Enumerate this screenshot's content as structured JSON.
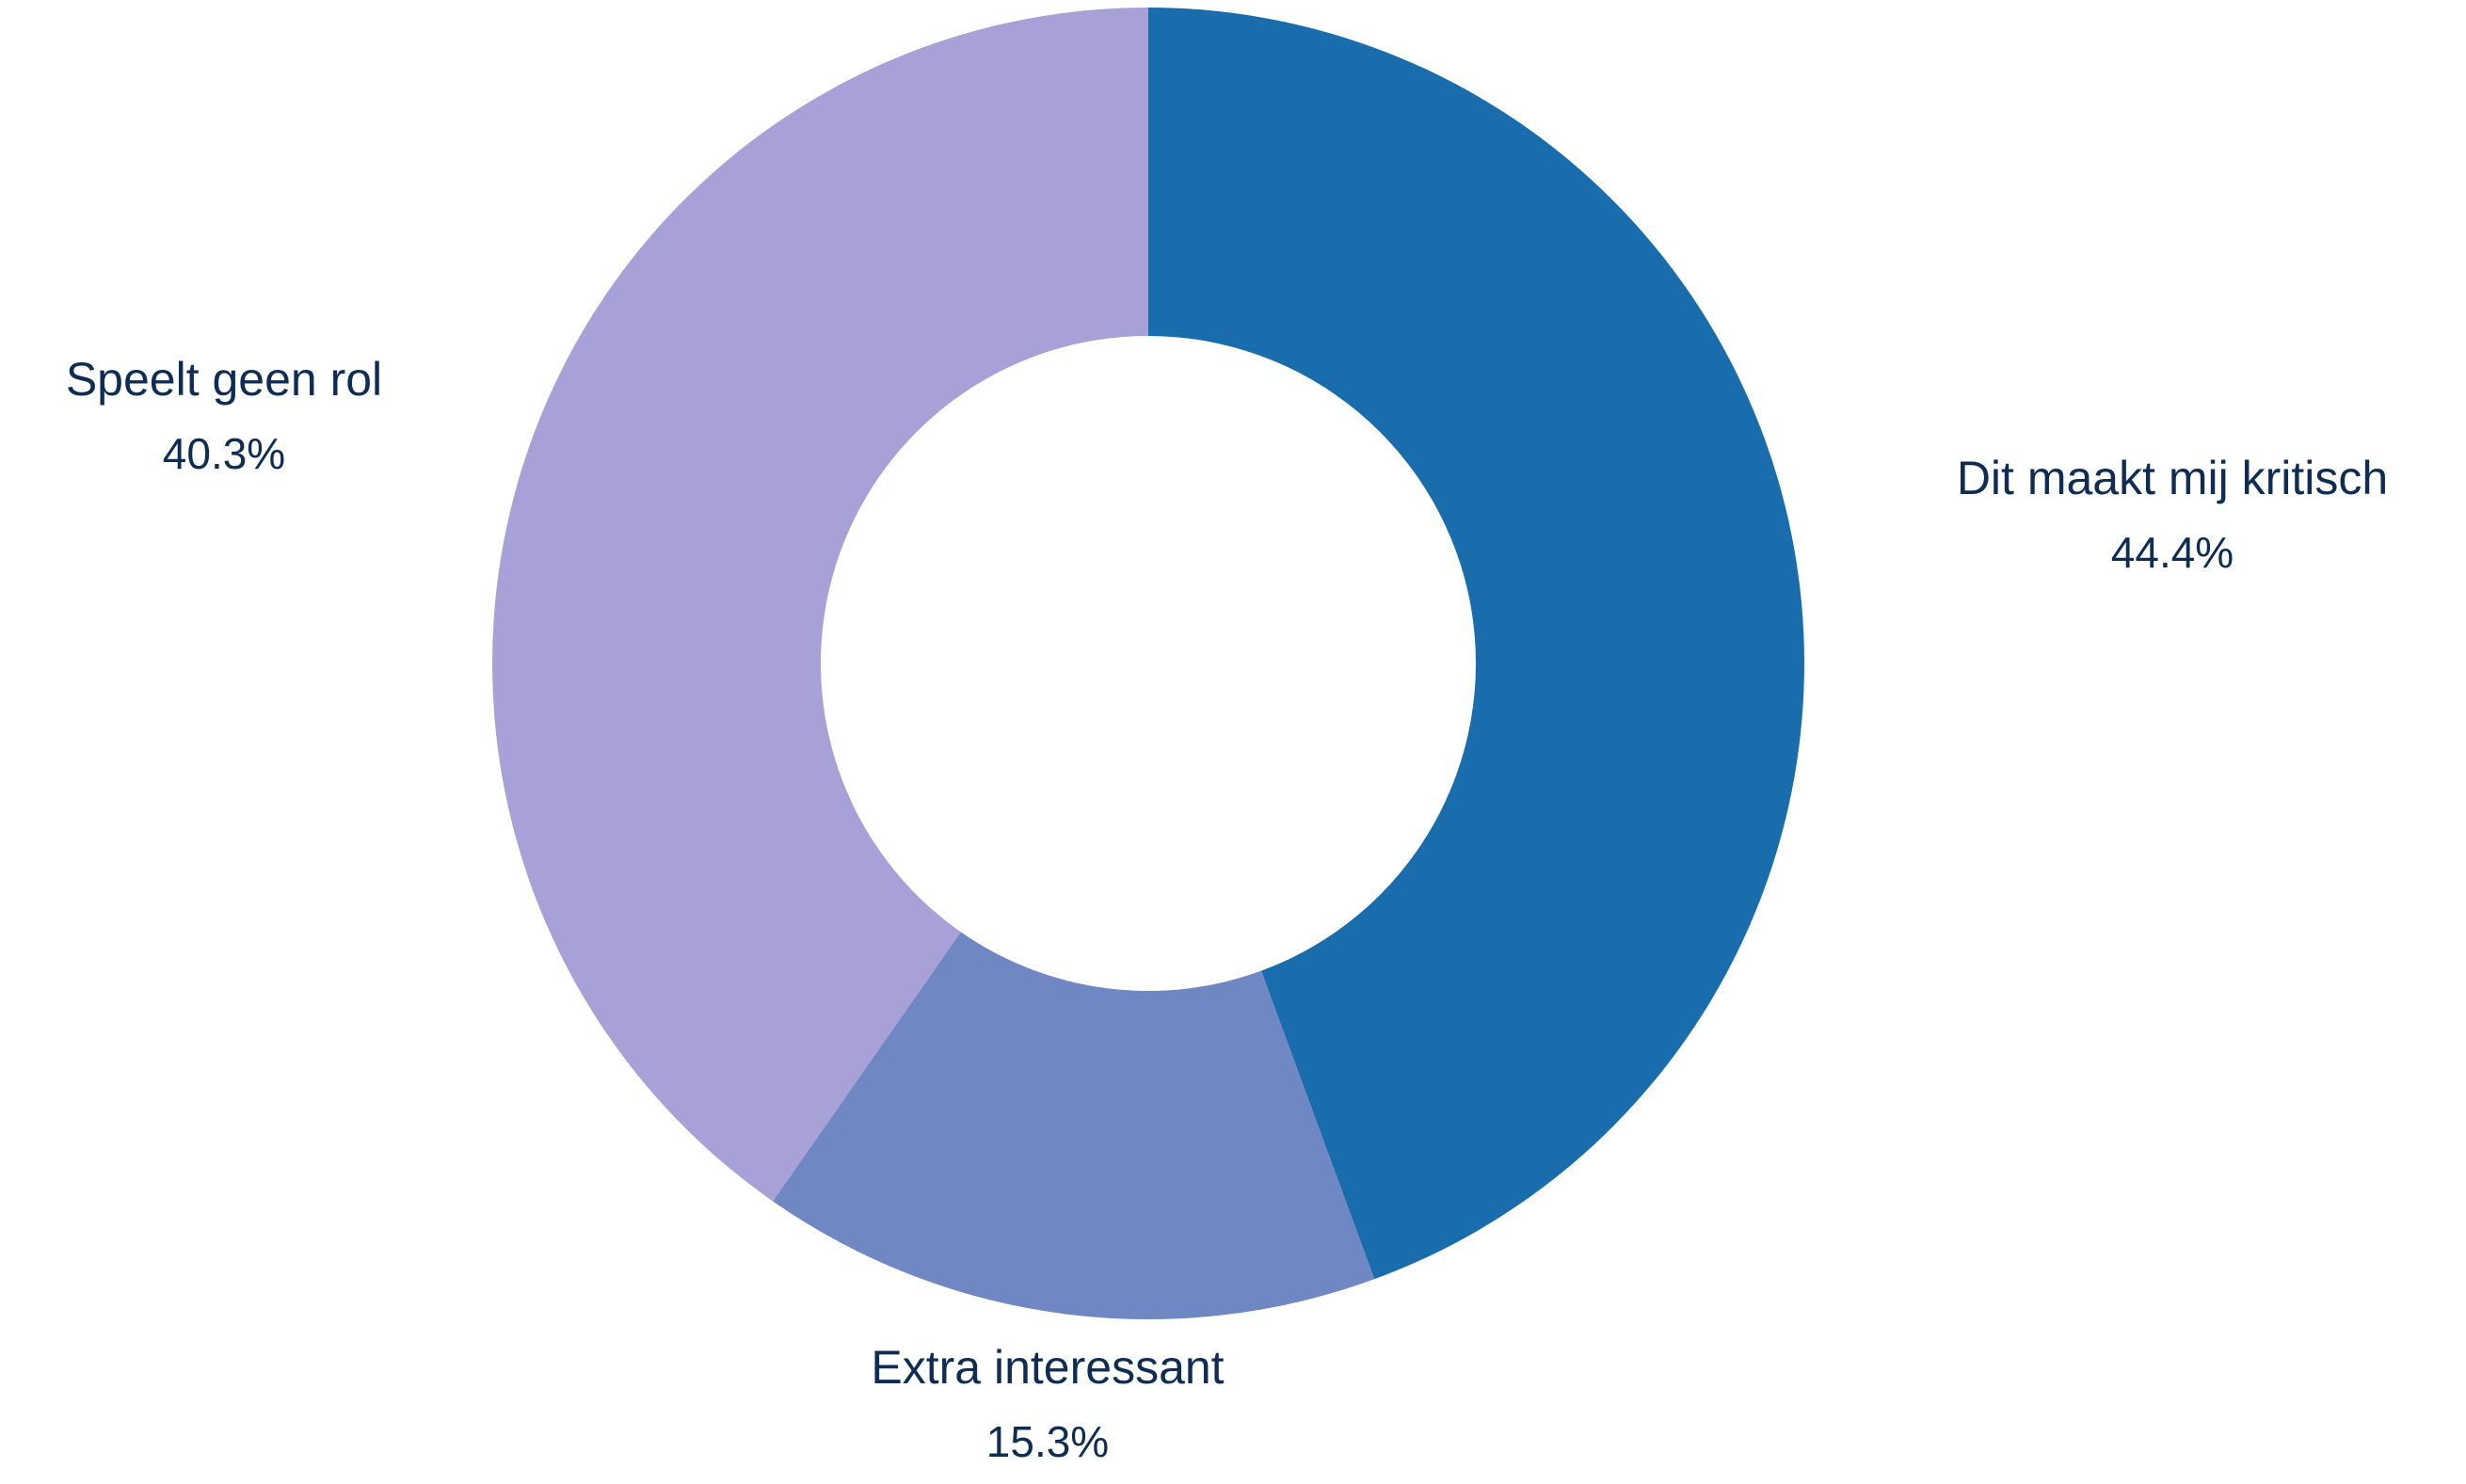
{
  "chart_data": {
    "type": "pie",
    "donut": true,
    "slices": [
      {
        "label": "Dit maakt mij kritisch",
        "value": 44.4,
        "display": "44.4%",
        "color": "#1a6dac"
      },
      {
        "label": "Extra interessant",
        "value": 15.3,
        "display": "15.3%",
        "color": "#6f87c3"
      },
      {
        "label": "Speelt geen rol",
        "value": 40.3,
        "display": "40.3%",
        "color": "#a8a1d7"
      }
    ],
    "label_color": "#0f2d54",
    "start_angle": "12 o'clock",
    "direction": "clockwise"
  }
}
